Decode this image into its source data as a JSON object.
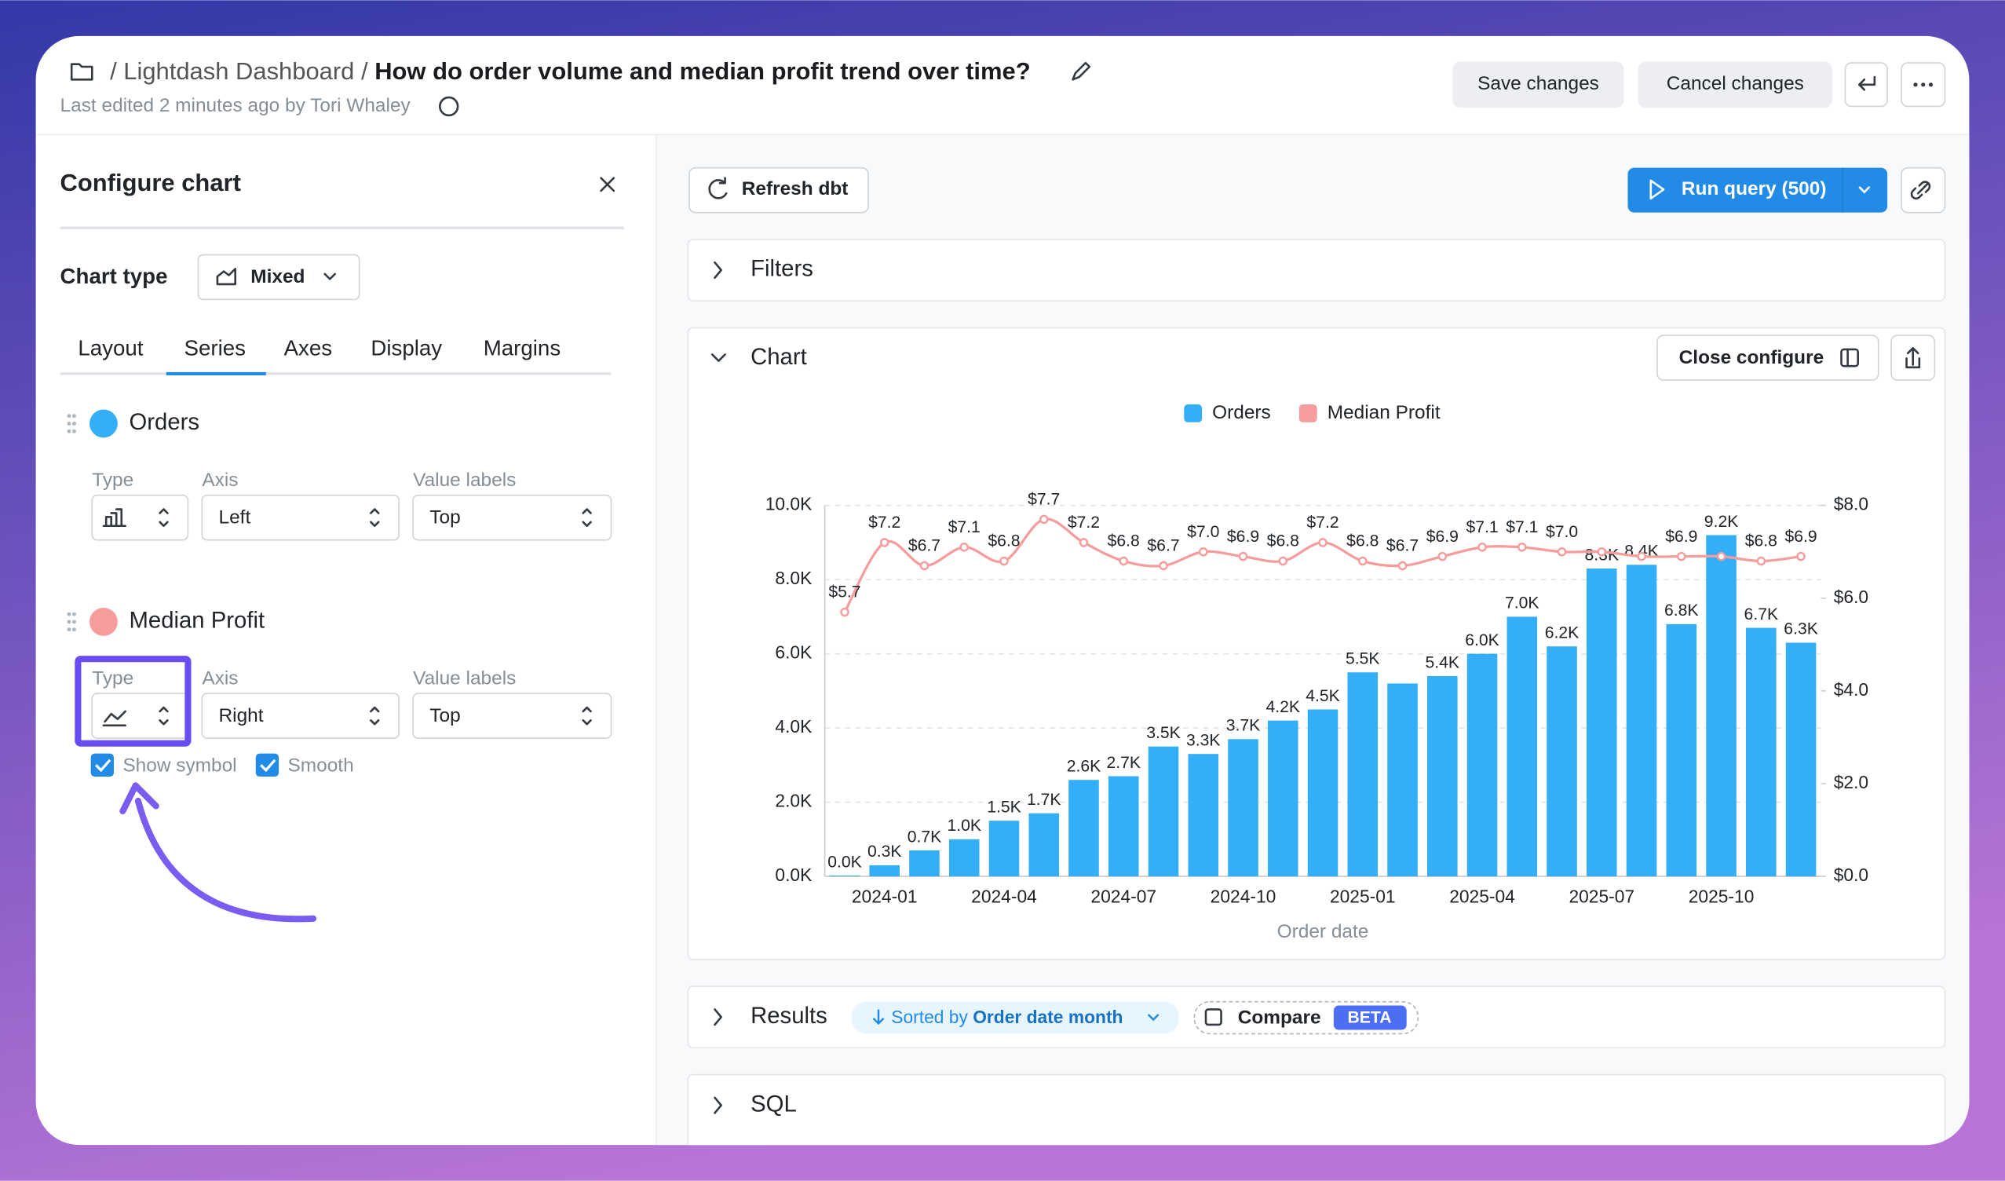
{
  "header": {
    "path": "/ Lightdash Dashboard / ",
    "title": "How do order volume and median profit trend over time?",
    "last_edited": "Last edited 2 minutes ago by Tori Whaley",
    "save": "Save changes",
    "cancel": "Cancel changes"
  },
  "configure": {
    "title": "Configure chart",
    "chart_type_label": "Chart type",
    "chart_type": "Mixed",
    "tabs": [
      "Layout",
      "Series",
      "Axes",
      "Display",
      "Margins"
    ],
    "active_tab": 1,
    "series": [
      {
        "name": "Orders",
        "type_label": "Type",
        "axis_label": "Axis",
        "axis": "Left",
        "value_labels_label": "Value labels",
        "value_labels": "Top"
      },
      {
        "name": "Median Profit",
        "type_label": "Type",
        "axis_label": "Axis",
        "axis": "Right",
        "value_labels_label": "Value labels",
        "value_labels": "Top"
      }
    ],
    "options": [
      "Show symbol",
      "Smooth"
    ]
  },
  "toolbar": {
    "refresh": "Refresh dbt",
    "run": "Run query (500)"
  },
  "sections": {
    "filters": "Filters",
    "chart": "Chart",
    "close_configure": "Close configure",
    "results": "Results",
    "sorted_prefix": "Sorted by ",
    "sorted_field": "Order date month",
    "compare": "Compare",
    "beta": "BETA",
    "sql": "SQL"
  },
  "chart_data": {
    "type": "bar",
    "x_label": "Order date",
    "legend": "top",
    "grid": true,
    "categories": [
      null,
      "2024-01",
      null,
      null,
      "2024-04",
      null,
      null,
      "2024-07",
      null,
      null,
      "2024-10",
      null,
      null,
      "2025-01",
      null,
      null,
      "2025-04",
      null,
      null,
      "2025-07",
      null,
      null,
      "2025-10",
      null,
      null
    ],
    "series": [
      {
        "name": "Orders",
        "type": "bar",
        "color": "#35aef8",
        "values": [
          20,
          300,
          700,
          1000,
          1500,
          1700,
          2600,
          2700,
          3500,
          3300,
          3700,
          4200,
          4500,
          5500,
          5200,
          5400,
          6000,
          7000,
          6200,
          8300,
          8400,
          6800,
          9200,
          6700,
          6300
        ],
        "value_labels": [
          "0.0K",
          "0.3K",
          "0.7K",
          "1.0K",
          "1.5K",
          "1.7K",
          "2.6K",
          "2.7K",
          "3.5K",
          "3.3K",
          "3.7K",
          "4.2K",
          "4.5K",
          "5.5K",
          null,
          "5.4K",
          "6.0K",
          "7.0K",
          "6.2K",
          "8.3K",
          "8.4K",
          "6.8K",
          "9.2K",
          "6.7K",
          "6.3K"
        ]
      },
      {
        "name": "Median Profit",
        "type": "line",
        "axis": "y2",
        "color": "#f59c9c",
        "smooth": true,
        "show_symbol": true,
        "values": [
          5.7,
          7.2,
          6.7,
          7.1,
          6.8,
          7.7,
          7.2,
          6.8,
          6.7,
          7.0,
          6.9,
          6.8,
          7.2,
          6.8,
          6.7,
          6.9,
          7.1,
          7.1,
          7.0,
          7.0,
          6.9,
          6.9,
          6.9,
          6.8,
          6.9
        ],
        "value_labels": [
          "$5.7",
          "$7.2",
          "$6.7",
          "$7.1",
          "$6.8",
          "$7.7",
          "$7.2",
          "$6.8",
          "$6.7",
          "$7.0",
          "$6.9",
          "$6.8",
          "$7.2",
          "$6.8",
          "$6.7",
          "$6.9",
          "$7.1",
          "$7.1",
          "$7.0",
          null,
          null,
          "$6.9",
          null,
          "$6.8",
          "$6.9"
        ]
      }
    ],
    "ylim": [
      0,
      10000
    ],
    "yticks": [
      {
        "value": 0,
        "label": "0.0K"
      },
      {
        "value": 2000,
        "label": "2.0K"
      },
      {
        "value": 4000,
        "label": "4.0K"
      },
      {
        "value": 6000,
        "label": "6.0K"
      },
      {
        "value": 8000,
        "label": "8.0K"
      },
      {
        "value": 10000,
        "label": "10.0K"
      }
    ],
    "y2lim": [
      0,
      8
    ],
    "y2ticks": [
      {
        "value": 0,
        "label": "$0.0"
      },
      {
        "value": 2,
        "label": "$2.0"
      },
      {
        "value": 4,
        "label": "$4.0"
      },
      {
        "value": 6,
        "label": "$6.0"
      },
      {
        "value": 8,
        "label": "$8.0"
      }
    ]
  }
}
